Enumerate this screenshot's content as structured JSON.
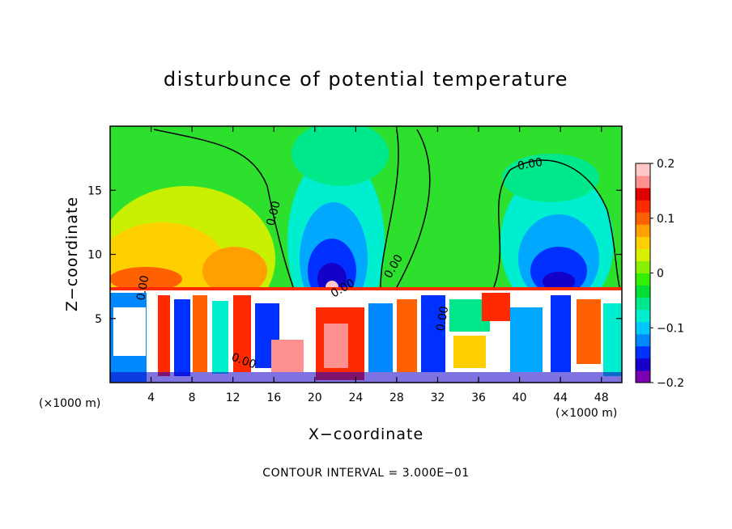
{
  "chart_data": {
    "type": "heatmap",
    "title": "disturbunce of potential temperature",
    "xlabel": "X−coordinate",
    "ylabel": "Z−coordinate",
    "x_unit_left": "(×1000 m)",
    "x_unit_right": "(×1000 m)",
    "xlim": [
      0,
      50
    ],
    "ylim": [
      0,
      20
    ],
    "x_ticks": [
      4,
      8,
      12,
      16,
      20,
      24,
      28,
      32,
      36,
      40,
      44,
      48
    ],
    "y_ticks": [
      5,
      10,
      15
    ],
    "colorbar": {
      "range": [
        -0.2,
        0.2
      ],
      "tick_labels": [
        "0.2",
        "0.1",
        "0",
        "−0.1",
        "−0.2"
      ],
      "tick_values": [
        0.2,
        0.1,
        0,
        -0.1,
        -0.2
      ],
      "colors": [
        "#7a00b0",
        "#1400c8",
        "#0030ff",
        "#0088ff",
        "#00c8ff",
        "#00eed0",
        "#00e88c",
        "#00dd33",
        "#33ee00",
        "#88f000",
        "#d8f000",
        "#ffd000",
        "#ffa000",
        "#ff6000",
        "#ff2a00",
        "#e00000",
        "#ff9090",
        "#ffc8c8"
      ]
    },
    "contour_labels": [
      "0.00",
      "0.00",
      "0.00",
      "0.00",
      "0.00",
      "0.00",
      "0.00"
    ],
    "annotation": "CONTOUR INTERVAL = 3.000E−01"
  }
}
